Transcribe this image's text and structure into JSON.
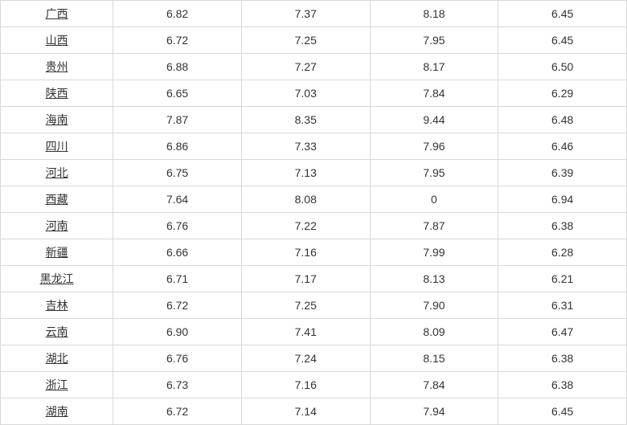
{
  "table": {
    "text_color": "#333333",
    "border_color": "#d9d9d9",
    "background_color": "#ffffff",
    "font_size": 14,
    "columns": [
      "province",
      "v1",
      "v2",
      "v3",
      "v4"
    ],
    "rows": [
      {
        "province": "广西",
        "v1": "6.82",
        "v2": "7.37",
        "v3": "8.18",
        "v4": "6.45"
      },
      {
        "province": "山西",
        "v1": "6.72",
        "v2": "7.25",
        "v3": "7.95",
        "v4": "6.45"
      },
      {
        "province": "贵州",
        "v1": "6.88",
        "v2": "7.27",
        "v3": "8.17",
        "v4": "6.50"
      },
      {
        "province": "陕西",
        "v1": "6.65",
        "v2": "7.03",
        "v3": "7.84",
        "v4": "6.29"
      },
      {
        "province": "海南",
        "v1": "7.87",
        "v2": "8.35",
        "v3": "9.44",
        "v4": "6.48"
      },
      {
        "province": "四川",
        "v1": "6.86",
        "v2": "7.33",
        "v3": "7.96",
        "v4": "6.46"
      },
      {
        "province": "河北",
        "v1": "6.75",
        "v2": "7.13",
        "v3": "7.95",
        "v4": "6.39"
      },
      {
        "province": "西藏",
        "v1": "7.64",
        "v2": "8.08",
        "v3": "0",
        "v4": "6.94"
      },
      {
        "province": "河南",
        "v1": "6.76",
        "v2": "7.22",
        "v3": "7.87",
        "v4": "6.38"
      },
      {
        "province": "新疆",
        "v1": "6.66",
        "v2": "7.16",
        "v3": "7.99",
        "v4": "6.28"
      },
      {
        "province": "黑龙江",
        "v1": "6.71",
        "v2": "7.17",
        "v3": "8.13",
        "v4": "6.21"
      },
      {
        "province": "吉林",
        "v1": "6.72",
        "v2": "7.25",
        "v3": "7.90",
        "v4": "6.31"
      },
      {
        "province": "云南",
        "v1": "6.90",
        "v2": "7.41",
        "v3": "8.09",
        "v4": "6.47"
      },
      {
        "province": "湖北",
        "v1": "6.76",
        "v2": "7.24",
        "v3": "8.15",
        "v4": "6.38"
      },
      {
        "province": "浙江",
        "v1": "6.73",
        "v2": "7.16",
        "v3": "7.84",
        "v4": "6.38"
      },
      {
        "province": "湖南",
        "v1": "6.72",
        "v2": "7.14",
        "v3": "7.94",
        "v4": "6.45"
      }
    ]
  }
}
